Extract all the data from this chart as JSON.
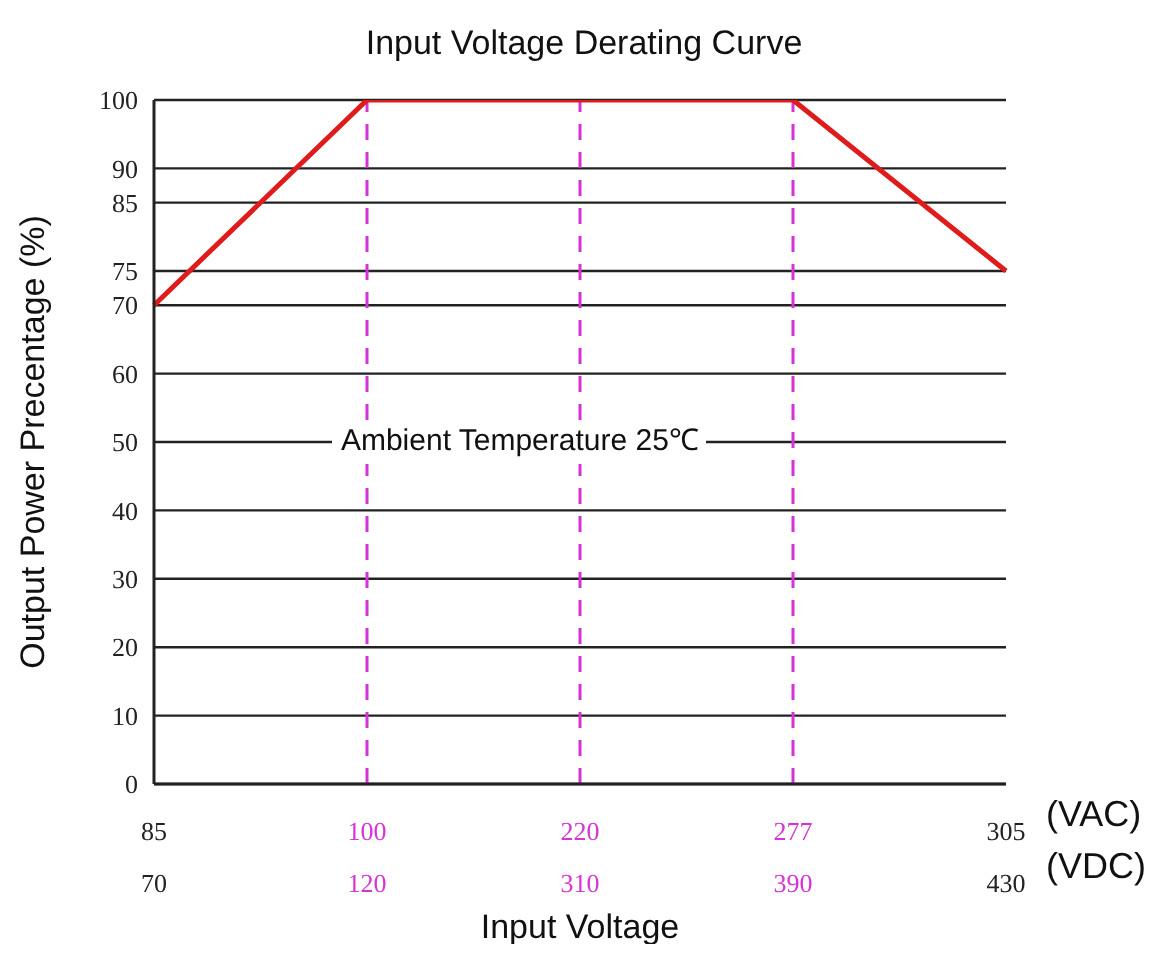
{
  "chart_data": {
    "type": "line",
    "title": "Input Voltage Derating Curve",
    "xlabel": "Input Voltage",
    "ylabel": "Output Power Precentage (%)",
    "categories": [
      "85\n70",
      "100\n120",
      "220\n310",
      "277\n390",
      "305\n430"
    ],
    "series": [
      {
        "color": "#e01b1b",
        "values": [
          70,
          100,
          100,
          100,
          75
        ]
      }
    ],
    "ylim": [
      0,
      100
    ],
    "yticks": [
      0,
      10,
      20,
      30,
      40,
      50,
      60,
      70,
      75,
      85,
      90,
      100
    ],
    "grid": "y",
    "marker": "none",
    "line_style": "solid",
    "legend": false,
    "ref_lines": [
      {
        "axis": "x",
        "value": "100\n120",
        "color": "#d633d6",
        "line_style": "dashed"
      },
      {
        "axis": "x",
        "value": "220\n310",
        "color": "#d633d6",
        "line_style": "dashed"
      },
      {
        "axis": "x",
        "value": "277\n390",
        "color": "#d633d6",
        "line_style": "dashed"
      }
    ],
    "annotations": [
      "Ambient Temperature 25℃",
      "(VAC)",
      "(VDC)"
    ]
  }
}
